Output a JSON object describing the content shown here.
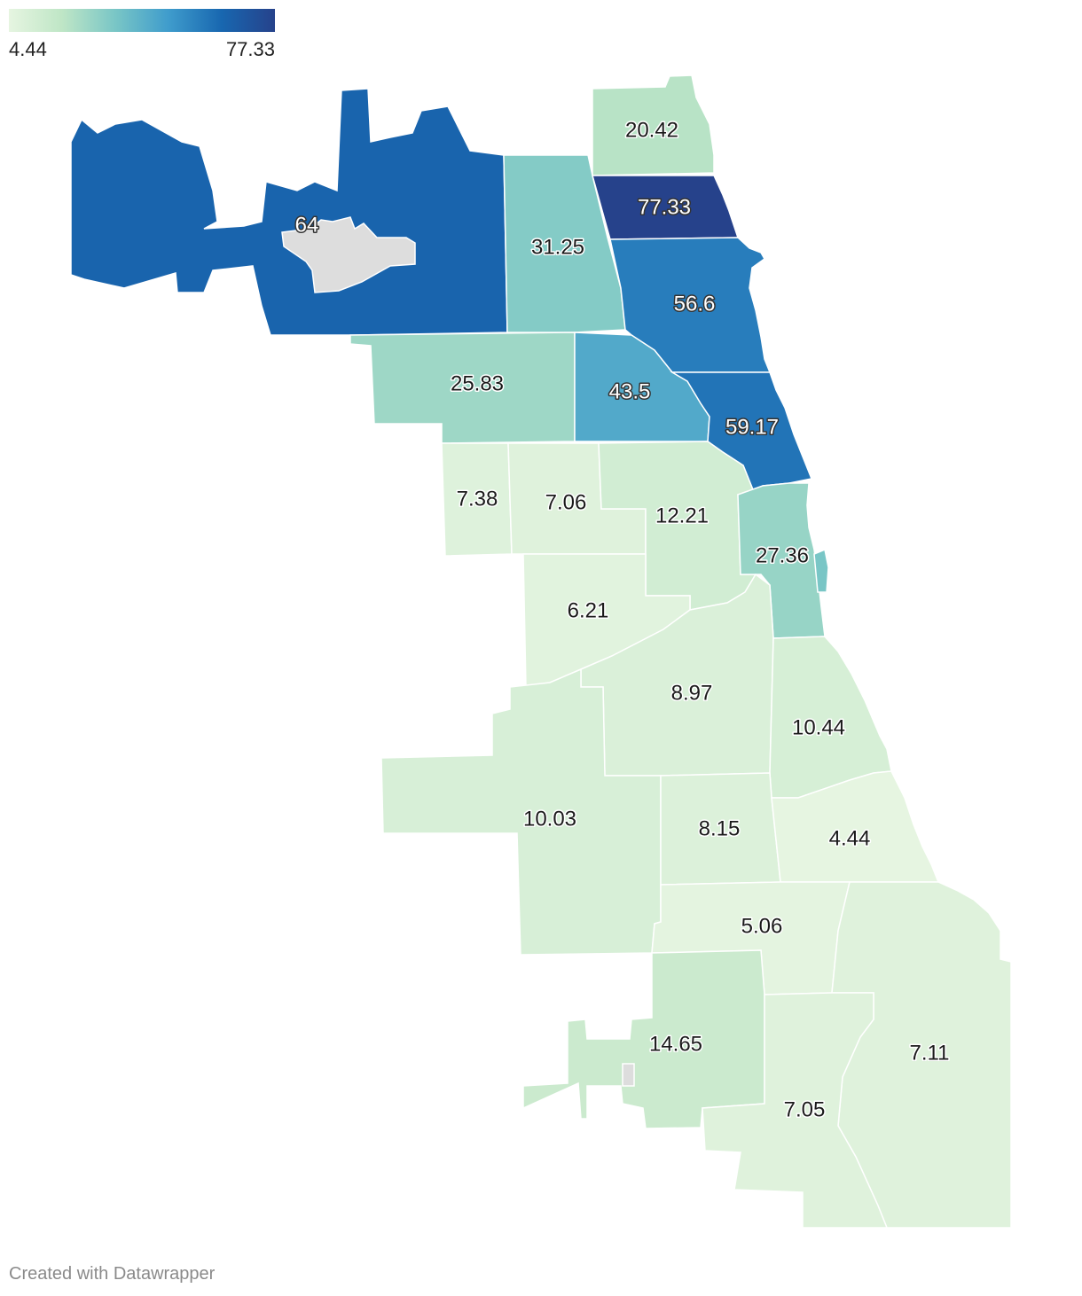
{
  "legend": {
    "min_label": "4.44",
    "max_label": "77.33",
    "min": 4.44,
    "max": 77.33,
    "colors": [
      "#e6f5e1",
      "#bfe6c6",
      "#79c6c6",
      "#3f9ccc",
      "#1867b0",
      "#26428b"
    ]
  },
  "no_data_color": "#dddddd",
  "regions": [
    {
      "id": "r-6400",
      "value": 64,
      "label": "64"
    },
    {
      "id": "r-2042",
      "value": 20.42,
      "label": "20.42"
    },
    {
      "id": "r-3125",
      "value": 31.25,
      "label": "31.25"
    },
    {
      "id": "r-7733",
      "value": 77.33,
      "label": "77.33"
    },
    {
      "id": "r-5660",
      "value": 56.6,
      "label": "56.6"
    },
    {
      "id": "r-2583",
      "value": 25.83,
      "label": "25.83"
    },
    {
      "id": "r-4350",
      "value": 43.5,
      "label": "43.5"
    },
    {
      "id": "r-5917",
      "value": 59.17,
      "label": "59.17"
    },
    {
      "id": "r-0738",
      "value": 7.38,
      "label": "7.38"
    },
    {
      "id": "r-0706",
      "value": 7.06,
      "label": "7.06"
    },
    {
      "id": "r-1221",
      "value": 12.21,
      "label": "12.21"
    },
    {
      "id": "r-2736",
      "value": 27.36,
      "label": "27.36"
    },
    {
      "id": "r-0621",
      "value": 6.21,
      "label": "6.21"
    },
    {
      "id": "r-0897",
      "value": 8.97,
      "label": "8.97"
    },
    {
      "id": "r-1044",
      "value": 10.44,
      "label": "10.44"
    },
    {
      "id": "r-1003",
      "value": 10.03,
      "label": "10.03"
    },
    {
      "id": "r-0815",
      "value": 8.15,
      "label": "8.15"
    },
    {
      "id": "r-0444",
      "value": 4.44,
      "label": "4.44"
    },
    {
      "id": "r-0506",
      "value": 5.06,
      "label": "5.06"
    },
    {
      "id": "r-1465",
      "value": 14.65,
      "label": "14.65"
    },
    {
      "id": "r-0711",
      "value": 7.11,
      "label": "7.11"
    },
    {
      "id": "r-0705",
      "value": 7.05,
      "label": "7.05"
    }
  ],
  "footer": "Created with Datawrapper"
}
